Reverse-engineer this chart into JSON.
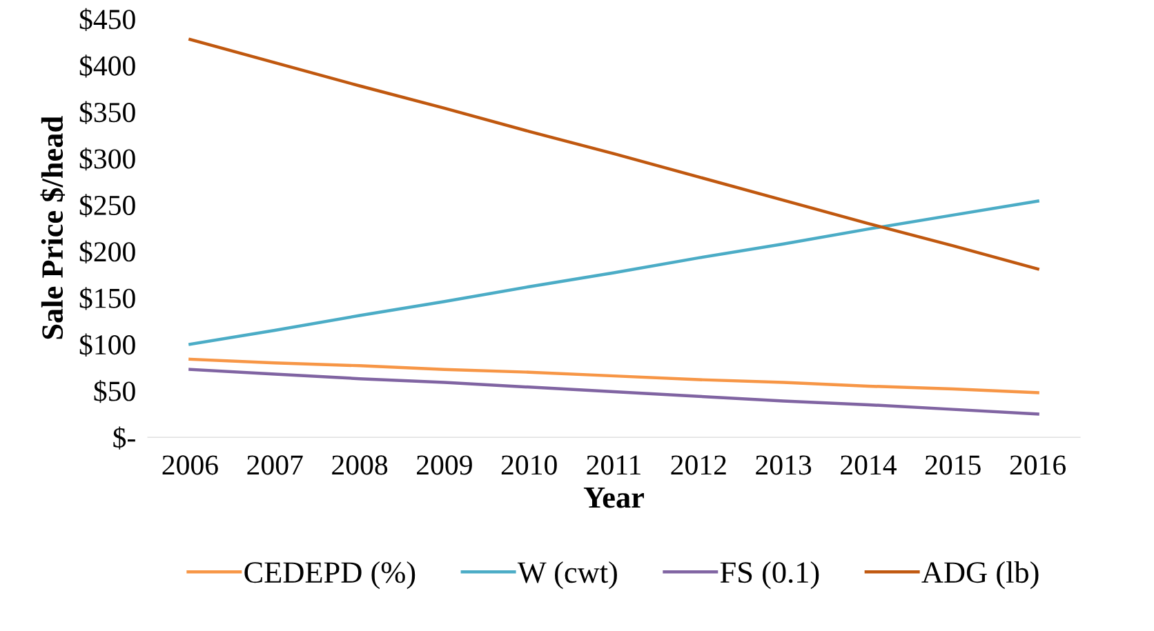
{
  "chart_data": {
    "type": "line",
    "xlabel": "Year",
    "ylabel": "Sale Price $/head",
    "categories": [
      "2006",
      "2007",
      "2008",
      "2009",
      "2010",
      "2011",
      "2012",
      "2013",
      "2014",
      "2015",
      "2016"
    ],
    "series": [
      {
        "name": "CEDEPD (%)",
        "color": "#f79646",
        "values": [
          84,
          80,
          77,
          73,
          70,
          66,
          62,
          59,
          55,
          52,
          48
        ]
      },
      {
        "name": "W (cwt)",
        "color": "#4bacc6",
        "values": [
          100,
          115,
          131,
          146,
          162,
          177,
          193,
          208,
          224,
          239,
          254
        ]
      },
      {
        "name": "FS (0.1)",
        "color": "#8064a2",
        "values": [
          73,
          68,
          63,
          59,
          54,
          49,
          44,
          39,
          35,
          30,
          25
        ]
      },
      {
        "name": "ADG (lb)",
        "color": "#c0580f",
        "values": [
          428,
          403,
          378,
          354,
          329,
          305,
          280,
          255,
          230,
          206,
          181
        ]
      }
    ],
    "ylim": [
      0,
      450
    ],
    "yticks": [
      {
        "value": 0,
        "label": "$-"
      },
      {
        "value": 50,
        "label": "$50"
      },
      {
        "value": 100,
        "label": "$100"
      },
      {
        "value": 150,
        "label": "$150"
      },
      {
        "value": 200,
        "label": "$200"
      },
      {
        "value": 250,
        "label": "$250"
      },
      {
        "value": 300,
        "label": "$300"
      },
      {
        "value": 350,
        "label": "$350"
      },
      {
        "value": 400,
        "label": "$400"
      },
      {
        "value": 450,
        "label": "$450"
      }
    ],
    "grid": false,
    "legend": "bottom",
    "marker": "none",
    "line_style": "solid"
  }
}
